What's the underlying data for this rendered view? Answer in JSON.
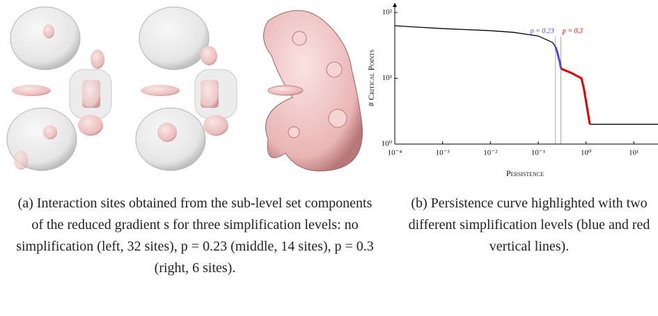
{
  "chart_data": {
    "type": "line",
    "xlabel": "Persistence",
    "ylabel": "# Critical Points",
    "xscale": "log",
    "yscale": "log",
    "xlim": [
      0.0001,
      32
    ],
    "ylim": [
      1,
      100
    ],
    "xticks": [
      {
        "value": 0.0001,
        "label": "10⁻⁴"
      },
      {
        "value": 0.001,
        "label": "10⁻³"
      },
      {
        "value": 0.01,
        "label": "10⁻²"
      },
      {
        "value": 0.1,
        "label": "10⁻¹"
      },
      {
        "value": 1,
        "label": "10⁰"
      },
      {
        "value": 10,
        "label": "10¹"
      }
    ],
    "yticks": [
      {
        "value": 1,
        "label": "10⁰"
      },
      {
        "value": 10,
        "label": "10¹"
      },
      {
        "value": 100,
        "label": "10²"
      }
    ],
    "series": [
      {
        "color": "#000000",
        "x": [
          0.0001,
          0.0003,
          0.001,
          0.003,
          0.01,
          0.03,
          0.1,
          0.2,
          0.23
        ],
        "values": [
          63,
          60,
          57,
          55,
          53,
          50,
          44,
          35,
          30
        ]
      },
      {
        "color": "#4a4adc",
        "x": [
          0.23,
          0.25,
          0.28,
          0.3
        ],
        "values": [
          30,
          25,
          18,
          14
        ]
      },
      {
        "color": "#e00000",
        "x": [
          0.3,
          0.5,
          0.8,
          0.9,
          1.2
        ],
        "values": [
          14,
          12,
          10,
          7,
          2
        ]
      },
      {
        "color": "#000000",
        "x": [
          1.2,
          32
        ],
        "values": [
          2,
          2
        ]
      }
    ],
    "vlines": [
      {
        "value": 0.23,
        "label": "p = 0.23",
        "color": "#4a4adc"
      },
      {
        "value": 0.3,
        "label": "p = 0.3",
        "color": "#e00000"
      }
    ]
  },
  "captions": [
    "(a) Interaction sites obtained from the sub-level set components of the reduced gradient s for three simplification levels: no simplification (left, 32 sites), p = 0.23 (middle, 14 sites), p = 0.3 (right, 6 sites).",
    "(b) Persistence curve highlighted with two different simplification levels (blue and red vertical lines)."
  ]
}
